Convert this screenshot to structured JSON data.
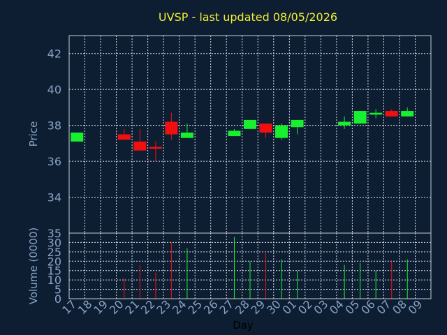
{
  "chart_data": [
    {
      "type": "candlestick",
      "title": "UVSP - last updated 08/05/2026",
      "ylabel": "Price",
      "ylim": [
        32,
        43
      ],
      "yticks": [
        34,
        36,
        38,
        40,
        42
      ],
      "grid": true,
      "colors": {
        "up": "#18ef2e",
        "down": "#f01010"
      },
      "categories": [
        "17",
        "18",
        "19",
        "20",
        "21",
        "22",
        "23",
        "24",
        "25",
        "26",
        "27",
        "28",
        "29",
        "30",
        "01",
        "02",
        "03",
        "04",
        "05",
        "06",
        "07",
        "08",
        "09"
      ],
      "candles": [
        {
          "x": "17",
          "open": 37.1,
          "close": 37.6,
          "high": 37.6,
          "low": 37.1
        },
        {
          "x": "20",
          "open": 37.5,
          "close": 37.2,
          "high": 37.8,
          "low": 37.2
        },
        {
          "x": "21",
          "open": 37.1,
          "close": 36.6,
          "high": 37.8,
          "low": 36.6
        },
        {
          "x": "22",
          "open": 36.8,
          "close": 36.7,
          "high": 37.1,
          "low": 36.0
        },
        {
          "x": "23",
          "open": 38.2,
          "close": 37.5,
          "high": 38.7,
          "low": 37.2
        },
        {
          "x": "24",
          "open": 37.3,
          "close": 37.6,
          "high": 38.1,
          "low": 37.3
        },
        {
          "x": "27",
          "open": 37.4,
          "close": 37.7,
          "high": 37.8,
          "low": 37.4
        },
        {
          "x": "28",
          "open": 37.8,
          "close": 38.3,
          "high": 38.3,
          "low": 37.8
        },
        {
          "x": "29",
          "open": 38.1,
          "close": 37.6,
          "high": 38.1,
          "low": 37.3
        },
        {
          "x": "30",
          "open": 37.3,
          "close": 38.0,
          "high": 38.1,
          "low": 37.2
        },
        {
          "x": "01",
          "open": 37.9,
          "close": 38.3,
          "high": 38.3,
          "low": 37.5
        },
        {
          "x": "04",
          "open": 38.0,
          "close": 38.2,
          "high": 38.5,
          "low": 37.8
        },
        {
          "x": "05",
          "open": 38.1,
          "close": 38.8,
          "high": 38.8,
          "low": 38.1
        },
        {
          "x": "06",
          "open": 38.6,
          "close": 38.7,
          "high": 38.9,
          "low": 38.4
        },
        {
          "x": "07",
          "open": 38.8,
          "close": 38.5,
          "high": 38.9,
          "low": 38.5
        },
        {
          "x": "08",
          "open": 38.5,
          "close": 38.8,
          "high": 39.0,
          "low": 38.5
        }
      ]
    },
    {
      "type": "bar",
      "xlabel": "Day",
      "ylabel": "Volume (0000)",
      "ylim": [
        0,
        35
      ],
      "yticks": [
        0,
        5,
        10,
        15,
        20,
        25,
        30,
        35
      ],
      "grid": true,
      "categories": [
        "17",
        "18",
        "19",
        "20",
        "21",
        "22",
        "23",
        "24",
        "25",
        "26",
        "27",
        "28",
        "29",
        "30",
        "01",
        "02",
        "03",
        "04",
        "05",
        "06",
        "07",
        "08",
        "09"
      ],
      "bars": [
        {
          "x": "20",
          "value": 11,
          "dir": "down"
        },
        {
          "x": "21",
          "value": 18,
          "dir": "down"
        },
        {
          "x": "22",
          "value": 14,
          "dir": "down"
        },
        {
          "x": "23",
          "value": 30,
          "dir": "down"
        },
        {
          "x": "24",
          "value": 27,
          "dir": "up"
        },
        {
          "x": "27",
          "value": 33,
          "dir": "up"
        },
        {
          "x": "28",
          "value": 20,
          "dir": "up"
        },
        {
          "x": "29",
          "value": 25,
          "dir": "down"
        },
        {
          "x": "30",
          "value": 21,
          "dir": "up"
        },
        {
          "x": "01",
          "value": 15,
          "dir": "up"
        },
        {
          "x": "04",
          "value": 18,
          "dir": "up"
        },
        {
          "x": "05",
          "value": 19,
          "dir": "up"
        },
        {
          "x": "06",
          "value": 15,
          "dir": "up"
        },
        {
          "x": "07",
          "value": 20,
          "dir": "down"
        },
        {
          "x": "08",
          "value": 21,
          "dir": "up"
        }
      ]
    }
  ]
}
